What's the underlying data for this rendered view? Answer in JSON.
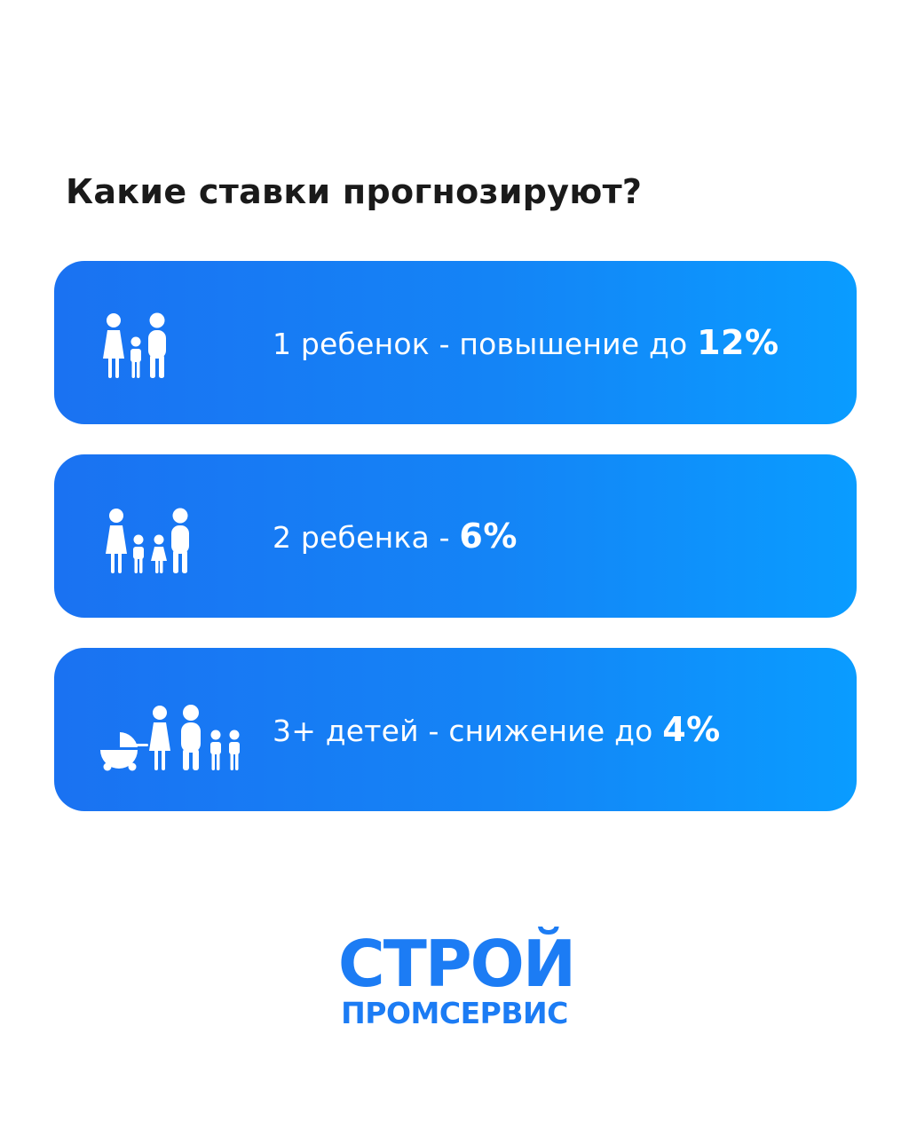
{
  "heading": "Какие ставки прогнозируют?",
  "accent_color": "#1c7cf4",
  "cards": [
    {
      "icon": "family-one-child-icon",
      "text": "1 ребенок - повышение до ",
      "value": "12%"
    },
    {
      "icon": "family-two-children-icon",
      "text": "2 ребенка - ",
      "value": "6%"
    },
    {
      "icon": "large-family-with-stroller-icon",
      "text": "3+ детей - снижение до ",
      "value": "4%"
    }
  ],
  "logo": {
    "line1": "СТРОЙ",
    "line2": "ПРОМСЕРВИС"
  }
}
